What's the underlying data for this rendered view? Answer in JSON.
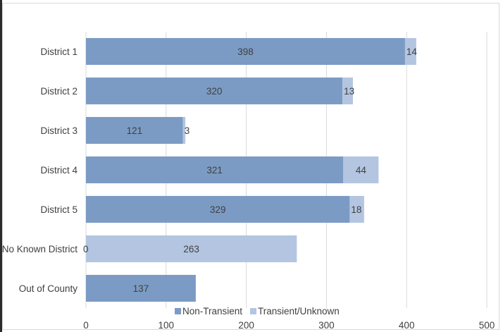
{
  "chart_data": {
    "type": "bar",
    "orientation": "horizontal",
    "stacked": true,
    "categories": [
      "District 1",
      "District 2",
      "District 3",
      "District 4",
      "District 5",
      "No Known District",
      "Out of County"
    ],
    "series": [
      {
        "name": "Non-Transient",
        "values": [
          398,
          320,
          121,
          321,
          329,
          0,
          137
        ],
        "color": "#7b9bc4"
      },
      {
        "name": "Transient/Unknown",
        "values": [
          14,
          13,
          3,
          44,
          18,
          263,
          null
        ],
        "color": "#b3c5e0"
      }
    ],
    "xlim": [
      0,
      500
    ],
    "xticks": [
      "0",
      "100",
      "200",
      "300",
      "400",
      "500"
    ],
    "grid": "vertical",
    "legend_position": "bottom",
    "title": "",
    "xlabel": "",
    "ylabel": ""
  }
}
